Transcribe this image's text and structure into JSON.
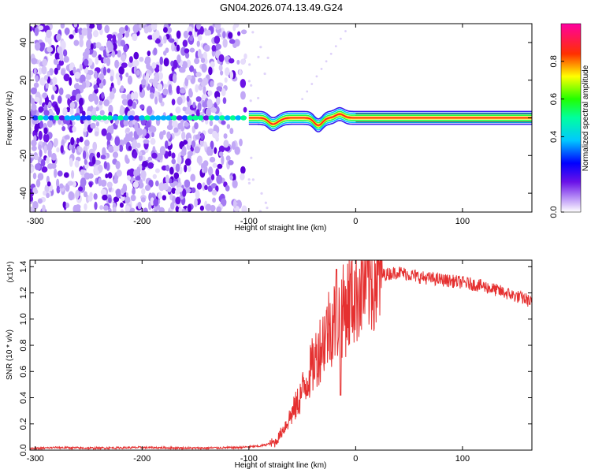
{
  "title": "GN04.2026.074.13.49.G24",
  "chart_data": [
    {
      "type": "heatmap",
      "xlabel": "Height of straight line (km)",
      "ylabel": "Frequency (Hz)",
      "xlim": [
        -305,
        165
      ],
      "ylim": [
        -50,
        50
      ],
      "x_ticks": [
        -300,
        -200,
        -100,
        0,
        100
      ],
      "y_ticks": [
        -40,
        -20,
        0,
        20,
        40
      ],
      "colorbar_label": "Normalized spectral amplitude",
      "colorbar_ticks": [
        "0.0",
        "0.4",
        "0.6",
        "0.8"
      ],
      "colorbar_tick_values": [
        0.0,
        0.4,
        0.6,
        0.8
      ],
      "colorbar_range": [
        0,
        1
      ],
      "colormap": [
        "#ffffff",
        "#7a1cf0",
        "#0000ff",
        "#00ffff",
        "#00ff00",
        "#ffff00",
        "#ff0000",
        "#ff00aa"
      ],
      "noise_region_x": [
        -305,
        -100
      ],
      "signal_band": {
        "center_freq": 0,
        "x_start": -100,
        "x_end": 165,
        "deviations": [
          {
            "x": -78,
            "freq": -3
          },
          {
            "x": -72,
            "freq": -1
          },
          {
            "x": -35,
            "freq": -4
          },
          {
            "x": -15,
            "freq": 2
          }
        ]
      }
    },
    {
      "type": "line",
      "xlabel": "Height of straight line (km)",
      "ylabel": "SNR (10 * v/v)",
      "y_exponent_label": "(x10⁴)",
      "xlim": [
        -305,
        165
      ],
      "ylim": [
        0,
        1.45
      ],
      "x_ticks": [
        -300,
        -200,
        -100,
        0,
        100
      ],
      "y_ticks": [
        "0.0",
        "0.2",
        "0.4",
        "0.6",
        "0.8",
        "1.0",
        "1.2",
        "1.4"
      ],
      "color": "#e53030",
      "x": [
        -305,
        -280,
        -250,
        -200,
        -150,
        -110,
        -90,
        -75,
        -65,
        -55,
        -45,
        -35,
        -25,
        -18,
        -12,
        -5,
        5,
        20,
        40,
        60,
        80,
        100,
        120,
        140,
        160,
        165
      ],
      "y": [
        0.01,
        0.02,
        0.015,
        0.02,
        0.015,
        0.02,
        0.03,
        0.06,
        0.2,
        0.35,
        0.55,
        0.75,
        0.95,
        1.0,
        1.05,
        1.15,
        1.27,
        1.33,
        1.36,
        1.32,
        1.3,
        1.28,
        1.25,
        1.2,
        1.15,
        1.12
      ],
      "spikes": [
        {
          "x": -18,
          "y": 1.38
        },
        {
          "x": -14,
          "y": 0.42
        }
      ]
    }
  ]
}
